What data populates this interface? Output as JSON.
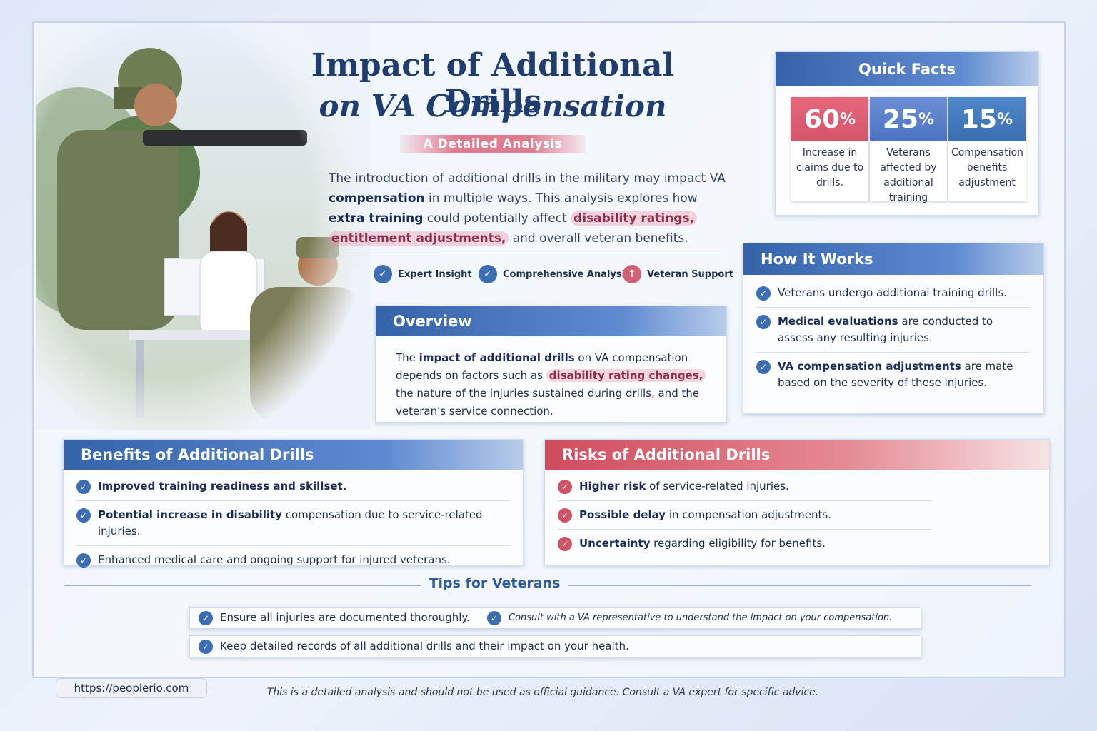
{
  "header": {
    "title_line1": "Impact of Additional Drills",
    "title_line2": "on VA Compensation",
    "subtitle": "A Detailed Analysis",
    "intro": [
      "The introduction of additional drills in the military may impact VA ",
      {
        "text": "compensation",
        "style": "bold"
      },
      " in multiple ways. This analysis explores how ",
      {
        "text": "extra training",
        "style": "bold"
      },
      " could potentially affect ",
      {
        "text": "disability ratings,",
        "style": "highlight"
      },
      " ",
      {
        "text": "entitlement adjustments,",
        "style": "highlight"
      },
      " and overall veteran benefits."
    ],
    "badges": [
      "Expert Insight",
      "Comprehensive Analysis",
      "Veteran Support"
    ]
  },
  "overview": {
    "title": "Overview",
    "body": [
      "The ",
      {
        "text": "impact of additional drills",
        "style": "bold"
      },
      " on VA compensation depends on factors such as ",
      {
        "text": "disability rating changes,",
        "style": "highlight"
      },
      " the nature of the injuries sustained during drills, and the veteran's service connection."
    ]
  },
  "quick_facts": {
    "title": "Quick Facts",
    "facts": [
      {
        "value": 60,
        "unit": "%",
        "label": "Increase in claims due to drills."
      },
      {
        "value": 25,
        "unit": "%",
        "label": "Veterans affected by additional training"
      },
      {
        "value": 15,
        "unit": "%",
        "label": "Compensation benefits adjustment"
      }
    ]
  },
  "how_it_works": {
    "title": "How It Works",
    "items": [
      [
        "Veterans undergo additional training drills."
      ],
      [
        {
          "text": "Medical evaluations",
          "style": "bold"
        },
        " are conducted to assess any resulting injuries."
      ],
      [
        {
          "text": "VA compensation adjustments",
          "style": "bold"
        },
        " are mate based on the severity of these injuries."
      ]
    ]
  },
  "benefits": {
    "title": "Benefits of Additional Drills",
    "items": [
      [
        {
          "text": "Improved training readiness and skillset.",
          "style": "bold"
        }
      ],
      [
        {
          "text": "Potential increase in disability",
          "style": "bold"
        },
        " compensation due to service-related injuries."
      ],
      [
        "Enhanced medical care and ongoing support for injured veterans."
      ]
    ]
  },
  "risks": {
    "title": "Risks of Additional Drills",
    "items": [
      [
        {
          "text": "Higher risk",
          "style": "bold"
        },
        " of service-related injuries."
      ],
      [
        {
          "text": "Possible delay",
          "style": "bold"
        },
        " in compensation adjustments."
      ],
      [
        {
          "text": "Uncertainty",
          "style": "bold"
        },
        " regarding eligibility for benefits."
      ]
    ]
  },
  "tips": {
    "title": "Tips for Veterans",
    "items": [
      [
        "Ensure all injuries are documented thoroughly."
      ],
      [
        "Consult with a VA representative to understand the impact on your compensation."
      ],
      [
        "Keep detailed records of all additional drills and their impact on your health."
      ]
    ]
  },
  "footer": {
    "url": "https://peoplerio.com",
    "disclaimer": "This is a detailed analysis and should not be used as official guidance. Consult a VA expert for specific advice."
  }
}
